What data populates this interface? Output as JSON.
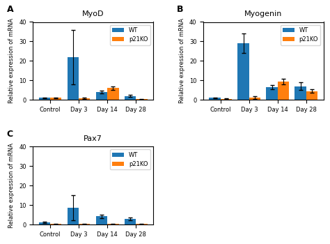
{
  "chart_data": [
    {
      "type": "bar",
      "title": "MyoD",
      "annotations": [
        "A"
      ],
      "y_label": "Relative expression of mRNA",
      "categories": [
        "Control",
        "Day 3",
        "Day 14",
        "Day 28"
      ],
      "series": [
        {
          "name": "WT",
          "values": [
            1.0,
            22.0,
            4.0,
            2.0
          ],
          "errors": [
            0.3,
            14.0,
            0.8,
            0.5
          ]
        },
        {
          "name": "p21KO",
          "values": [
            1.0,
            0.8,
            6.0,
            0.3
          ],
          "errors": [
            0.3,
            0.5,
            1.0,
            0.2
          ]
        }
      ],
      "ylim": [
        0,
        40
      ],
      "yticks": [
        0,
        10,
        20,
        30,
        40
      ],
      "legend": "upper right"
    },
    {
      "type": "bar",
      "title": "Myogenin",
      "annotations": [
        "B"
      ],
      "y_label": "Relative expression of mRNA",
      "categories": [
        "Control",
        "Day 3",
        "Day 14",
        "Day 28"
      ],
      "series": [
        {
          "name": "WT",
          "values": [
            1.0,
            29.0,
            6.5,
            7.0
          ],
          "errors": [
            0.3,
            5.0,
            1.0,
            2.0
          ]
        },
        {
          "name": "p21KO",
          "values": [
            0.5,
            1.2,
            9.5,
            4.5
          ],
          "errors": [
            0.2,
            0.8,
            1.5,
            1.0
          ]
        }
      ],
      "ylim": [
        0,
        40
      ],
      "yticks": [
        0,
        10,
        20,
        30,
        40
      ],
      "legend": "upper right"
    },
    {
      "type": "bar",
      "title": "Pax7",
      "annotations": [
        "C"
      ],
      "y_label": "Relative expression of mRNA",
      "categories": [
        "Control",
        "Day 3",
        "Day 14",
        "Day 28"
      ],
      "series": [
        {
          "name": "WT",
          "values": [
            1.0,
            8.5,
            4.2,
            2.8
          ],
          "errors": [
            0.3,
            6.5,
            0.8,
            0.7
          ]
        },
        {
          "name": "p21KO",
          "values": [
            0.2,
            0.2,
            0.2,
            0.2
          ],
          "errors": [
            0.05,
            0.05,
            0.08,
            0.05
          ]
        }
      ],
      "ylim": [
        0,
        40
      ],
      "yticks": [
        0,
        10,
        20,
        30,
        40
      ],
      "legend": "upper right"
    }
  ]
}
